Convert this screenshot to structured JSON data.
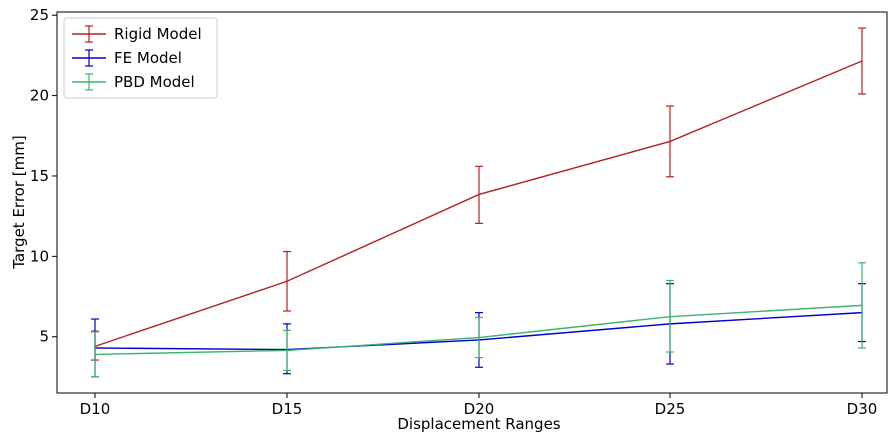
{
  "chart_data": {
    "type": "line",
    "title": "",
    "xlabel": "Displacement Ranges",
    "ylabel": "Target Error [mm]",
    "categories": [
      "D10",
      "D15",
      "D20",
      "D25",
      "D30"
    ],
    "ylim": [
      1.5,
      25.2
    ],
    "yticks": [
      5,
      10,
      15,
      20,
      25
    ],
    "grid": false,
    "legend_position": "top-left",
    "series": [
      {
        "name": "Rigid Model",
        "color": "#b22222",
        "values": [
          4.4,
          8.45,
          13.85,
          17.15,
          22.15
        ],
        "err_low": [
          3.55,
          6.6,
          12.05,
          14.95,
          20.1
        ],
        "err_high": [
          5.35,
          10.3,
          15.6,
          19.35,
          24.2
        ]
      },
      {
        "name": "FE Model",
        "color": "#0000cd",
        "values": [
          4.3,
          4.2,
          4.8,
          5.8,
          6.5
        ],
        "err_low": [
          2.5,
          2.7,
          3.1,
          3.3,
          4.7
        ],
        "err_high": [
          6.1,
          5.8,
          6.5,
          8.3,
          8.3
        ]
      },
      {
        "name": "PBD Model",
        "color": "#3cb371",
        "values": [
          3.9,
          4.15,
          4.95,
          6.25,
          6.95
        ],
        "err_low": [
          2.5,
          2.9,
          3.7,
          4.05,
          4.3
        ],
        "err_high": [
          5.3,
          5.4,
          6.2,
          8.5,
          9.6
        ]
      }
    ]
  }
}
